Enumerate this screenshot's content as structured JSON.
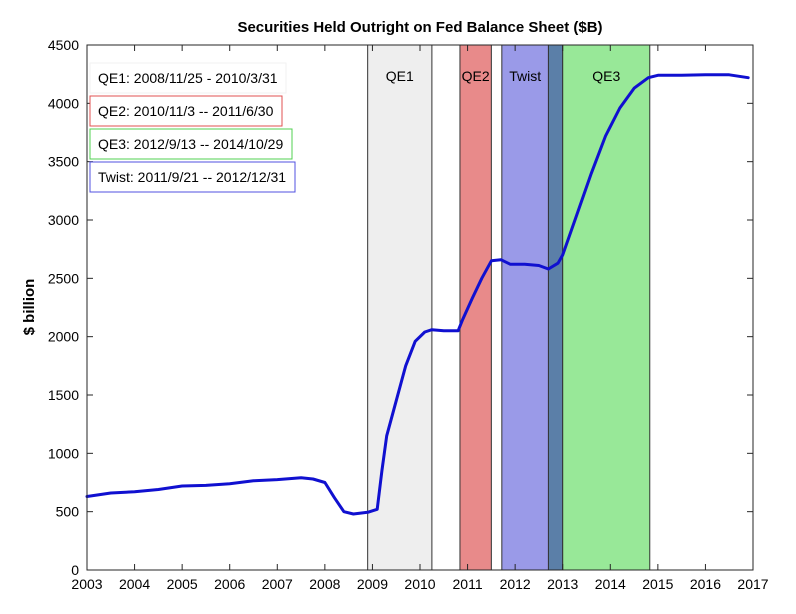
{
  "chart_data": {
    "type": "line",
    "title": "Securities Held Outright on Fed Balance Sheet ($B)",
    "xlabel": "",
    "ylabel": "$ billion",
    "xlim": [
      2003,
      2017
    ],
    "ylim": [
      0,
      4500
    ],
    "xticks": [
      2003,
      2004,
      2005,
      2006,
      2007,
      2008,
      2009,
      2010,
      2011,
      2012,
      2013,
      2014,
      2015,
      2016,
      2017
    ],
    "yticks": [
      0,
      500,
      1000,
      1500,
      2000,
      2500,
      3000,
      3500,
      4000,
      4500
    ],
    "grid": false,
    "series": [
      {
        "color": "#1010d0",
        "x": [
          2003.0,
          2003.5,
          2004.0,
          2004.5,
          2005.0,
          2005.5,
          2006.0,
          2006.5,
          2007.0,
          2007.5,
          2007.75,
          2008.0,
          2008.2,
          2008.4,
          2008.6,
          2008.9,
          2009.1,
          2009.2,
          2009.3,
          2009.5,
          2009.7,
          2009.9,
          2010.1,
          2010.25,
          2010.5,
          2010.8,
          2010.9,
          2011.1,
          2011.3,
          2011.5,
          2011.7,
          2011.9,
          2012.2,
          2012.5,
          2012.7,
          2012.9,
          2013.0,
          2013.3,
          2013.6,
          2013.9,
          2014.2,
          2014.5,
          2014.8,
          2015.0,
          2015.5,
          2016.0,
          2016.5,
          2016.9
        ],
        "y": [
          630,
          660,
          670,
          690,
          720,
          725,
          740,
          765,
          775,
          790,
          780,
          750,
          620,
          500,
          480,
          495,
          520,
          850,
          1150,
          1450,
          1750,
          1960,
          2040,
          2060,
          2050,
          2050,
          2150,
          2330,
          2500,
          2650,
          2660,
          2620,
          2620,
          2610,
          2580,
          2630,
          2700,
          3050,
          3400,
          3720,
          3960,
          4130,
          4220,
          4240,
          4240,
          4245,
          4245,
          4220
        ]
      }
    ],
    "periods": [
      {
        "label": "QE1",
        "start": 2008.9,
        "end": 2010.25,
        "color": "#eeeeee",
        "edge": "#333333"
      },
      {
        "label": "QE2",
        "start": 2010.84,
        "end": 2011.5,
        "color": "#e88a8a",
        "edge": "#333333"
      },
      {
        "label": "Twist",
        "start": 2011.72,
        "end": 2012.7,
        "color": "#9a9ae8",
        "edge": "#333333"
      },
      {
        "label": "",
        "start": 2012.7,
        "end": 2013.0,
        "color": "#5b7fa8",
        "edge": "#333333"
      },
      {
        "label": "QE3",
        "start": 2013.0,
        "end": 2014.83,
        "color": "#98e898",
        "edge": "#333333"
      }
    ],
    "legend_boxes": [
      {
        "text": "QE1: 2008/11/25 - 2010/3/31",
        "border": "#f2f2f2"
      },
      {
        "text": "QE2: 2010/11/3 -- 2011/6/30",
        "border": "#e05050"
      },
      {
        "text": "QE3: 2012/9/13 -- 2014/10/29",
        "border": "#50d050"
      },
      {
        "text": "Twist: 2011/9/21 -- 2012/12/31",
        "border": "#5050e0"
      }
    ],
    "legend_placement": "top-left"
  }
}
